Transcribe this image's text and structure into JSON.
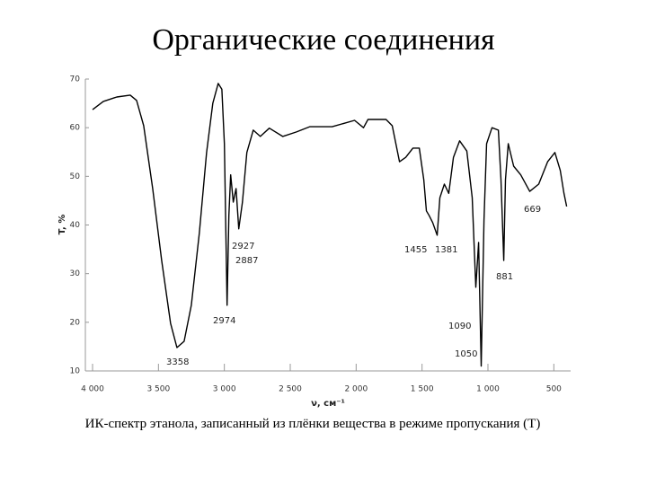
{
  "chart_data": {
    "type": "line",
    "title": "Органические соединения",
    "caption": "ИК-спектр этанола, записанный из плёнки вещества в режиме пропускания (T)",
    "x_label": "ν, см⁻¹",
    "y_label": "T, %",
    "xlim": [
      4000,
      400
    ],
    "ylim": [
      10,
      70
    ],
    "xticks": [
      {
        "value": 4000,
        "label": "4 000"
      },
      {
        "value": 3500,
        "label": "3 500"
      },
      {
        "value": 3000,
        "label": "3 000"
      },
      {
        "value": 2500,
        "label": "2 500"
      },
      {
        "value": 2000,
        "label": "2 000"
      },
      {
        "value": 1500,
        "label": "1 500"
      },
      {
        "value": 1000,
        "label": "1 000"
      },
      500
    ],
    "yticks": [
      10,
      20,
      30,
      40,
      50,
      60,
      70
    ],
    "x": [
      4000,
      3918,
      3816,
      3714,
      3666,
      3612,
      3544,
      3476,
      3408,
      3360,
      3305,
      3251,
      3190,
      3135,
      3088,
      3047,
      3019,
      3000,
      2979,
      2966,
      2952,
      2932,
      2911,
      2891,
      2863,
      2829,
      2781,
      2727,
      2659,
      2557,
      2455,
      2353,
      2182,
      2012,
      1944,
      1910,
      1773,
      1726,
      1671,
      1624,
      1569,
      1521,
      1487,
      1467,
      1447,
      1419,
      1385,
      1365,
      1331,
      1297,
      1262,
      1215,
      1160,
      1119,
      1092,
      1071,
      1051,
      1030,
      1010,
      969,
      921,
      901,
      880,
      867,
      846,
      805,
      751,
      683,
      615,
      547,
      492,
      451,
      424,
      403
    ],
    "series": [
      {
        "color": "#000000",
        "values": [
          63.7,
          65.4,
          66.3,
          66.7,
          65.6,
          60.4,
          47.5,
          32.7,
          19.8,
          14.8,
          16.1,
          23.5,
          38.3,
          54.9,
          65,
          69.1,
          67.9,
          56.7,
          23.5,
          42,
          50.3,
          44.7,
          47.5,
          39.2,
          44.7,
          54.9,
          59.5,
          58.2,
          59.9,
          58.2,
          59.1,
          60.2,
          60.2,
          61.5,
          60,
          61.7,
          61.7,
          60.4,
          53,
          53.9,
          55.8,
          55.8,
          49.3,
          42.9,
          42,
          40.5,
          37.9,
          45.6,
          48.4,
          46.5,
          53.9,
          57.3,
          55.2,
          45.6,
          27.2,
          36.4,
          11,
          41,
          56.7,
          60,
          59.5,
          49.3,
          32.7,
          49.3,
          56.7,
          52.1,
          50.3,
          46.9,
          48.4,
          53,
          54.9,
          51.2,
          46.6,
          43.8
        ]
      }
    ],
    "annotations": [
      "3358",
      "2974",
      "2927",
      "2887",
      "1455",
      "1381",
      "1090",
      "1050",
      "881",
      "669"
    ]
  }
}
